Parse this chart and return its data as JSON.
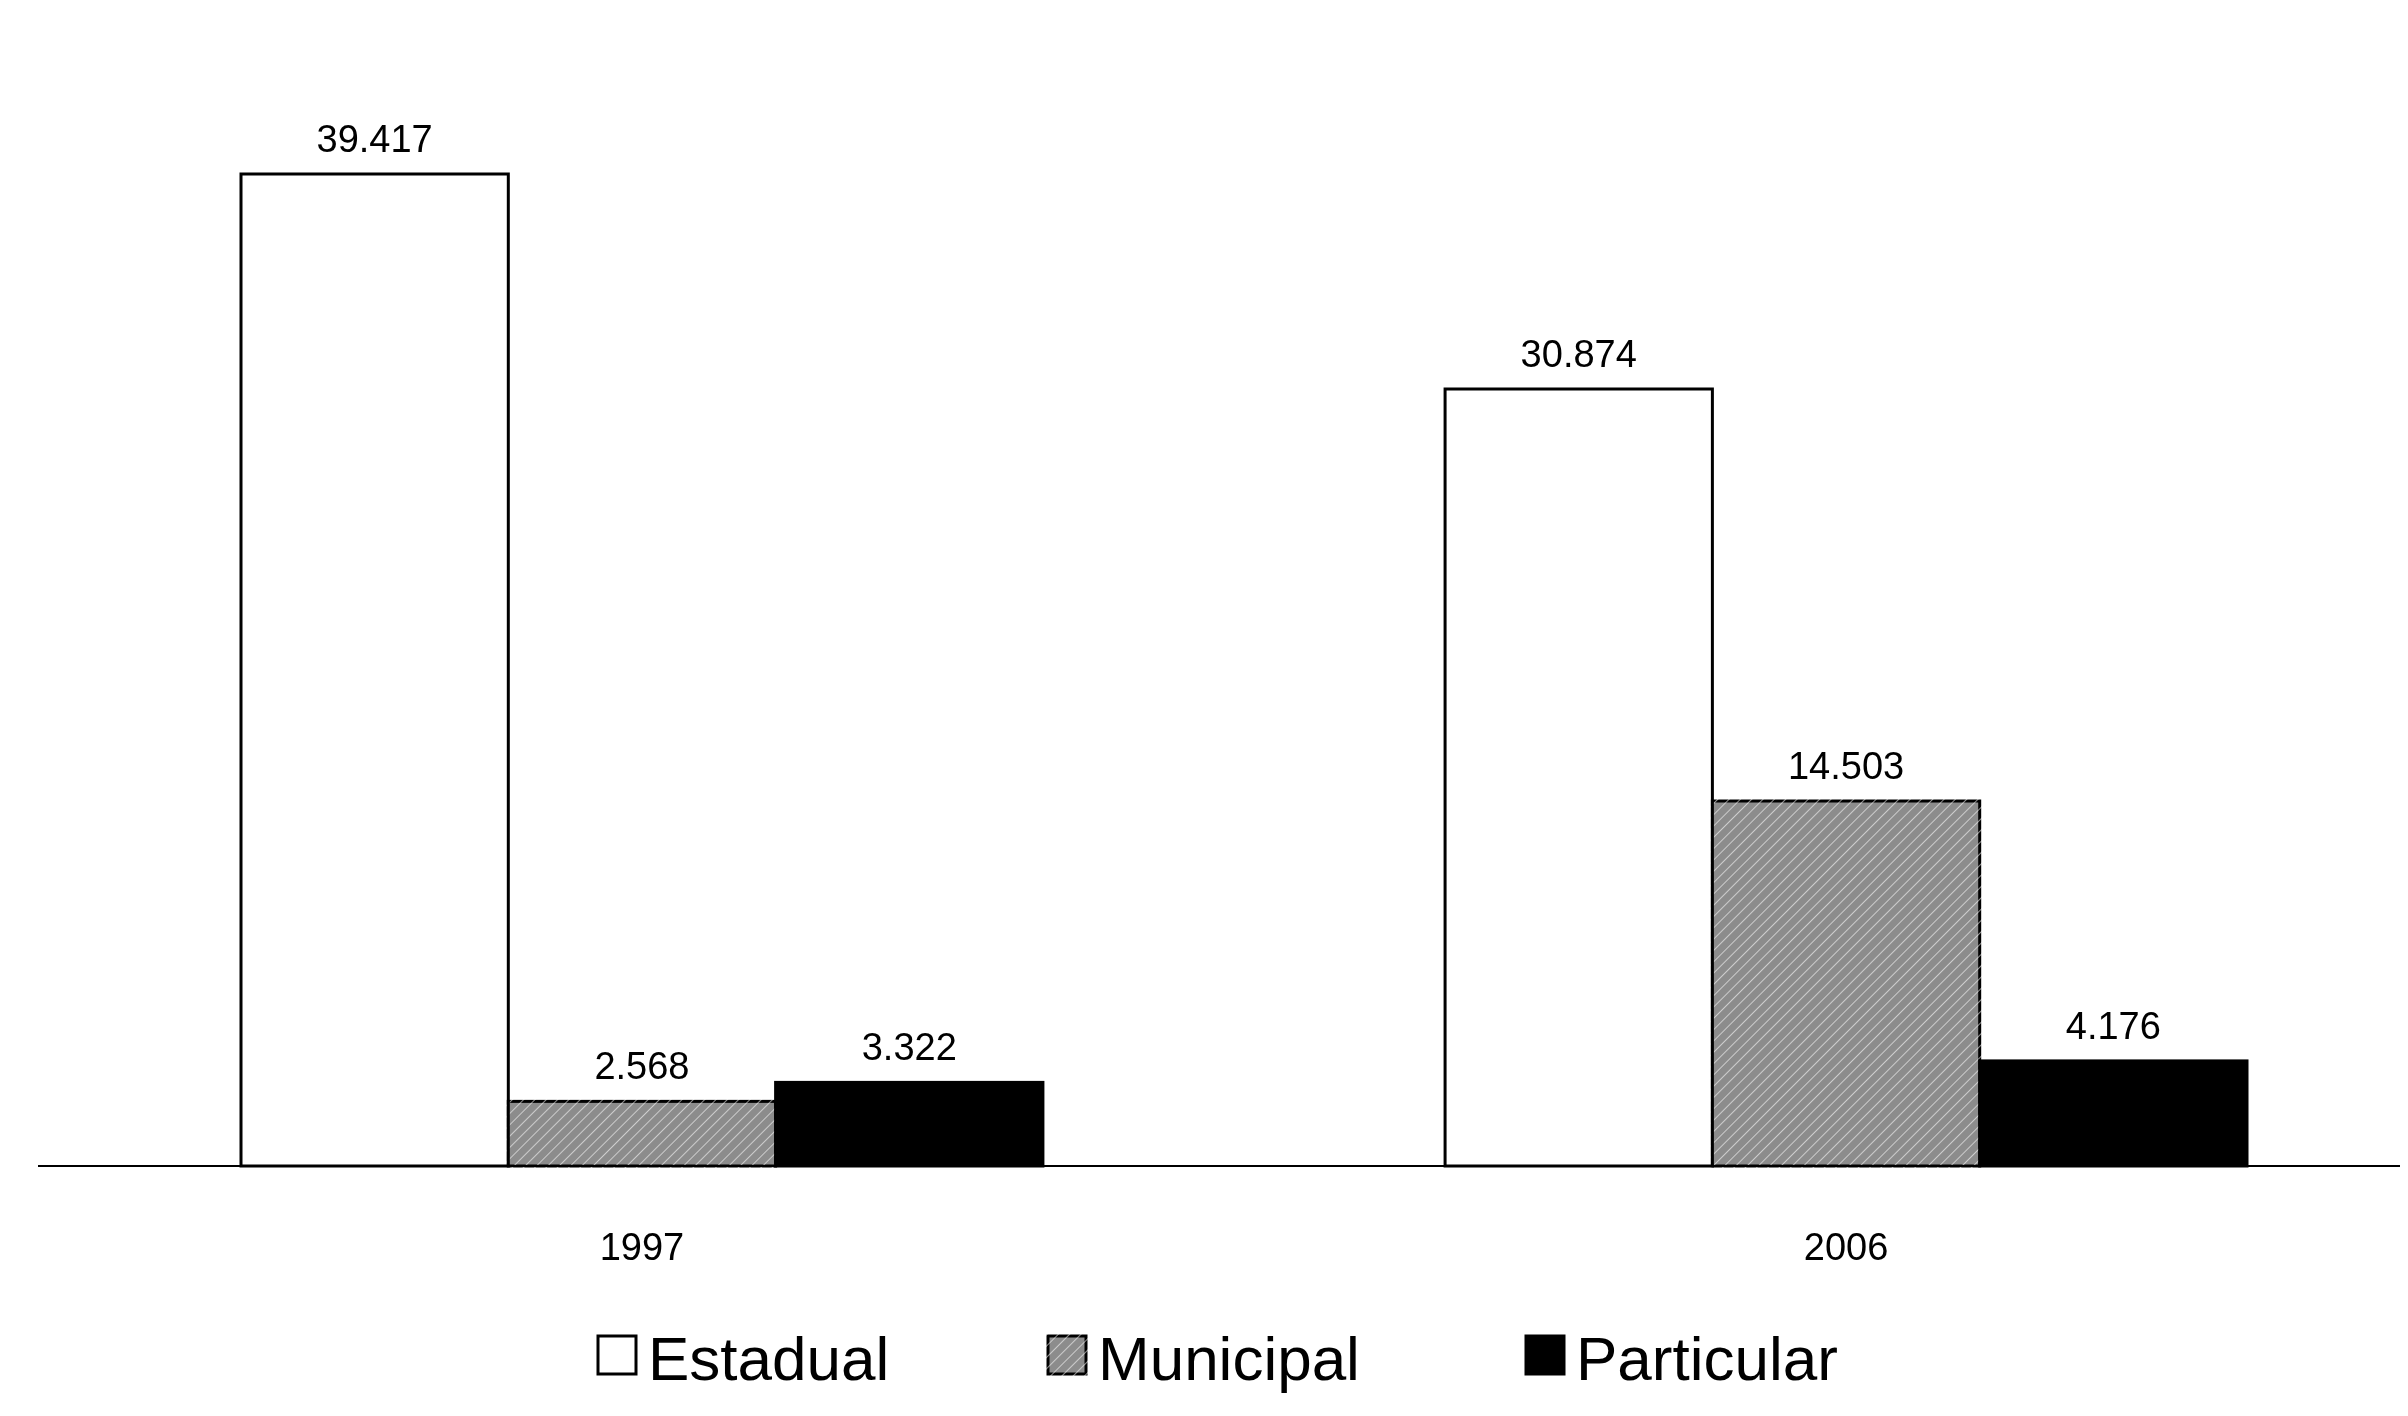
{
  "chart_data": {
    "type": "bar",
    "categories": [
      "1997",
      "2006"
    ],
    "series": [
      {
        "name": "Estadual",
        "color": "#ffffff",
        "values": [
          39417,
          30874
        ],
        "value_labels": [
          "39.417",
          "30.874"
        ]
      },
      {
        "name": "Municipal",
        "color": "#8c8c8c",
        "values": [
          2568,
          14503
        ],
        "value_labels": [
          "2.568",
          "14.503"
        ]
      },
      {
        "name": "Particular",
        "color": "#000000",
        "values": [
          3322,
          4176
        ],
        "value_labels": [
          "3.322",
          "4.176"
        ]
      }
    ],
    "relative": false,
    "legend": "bottom",
    "grid": false
  }
}
